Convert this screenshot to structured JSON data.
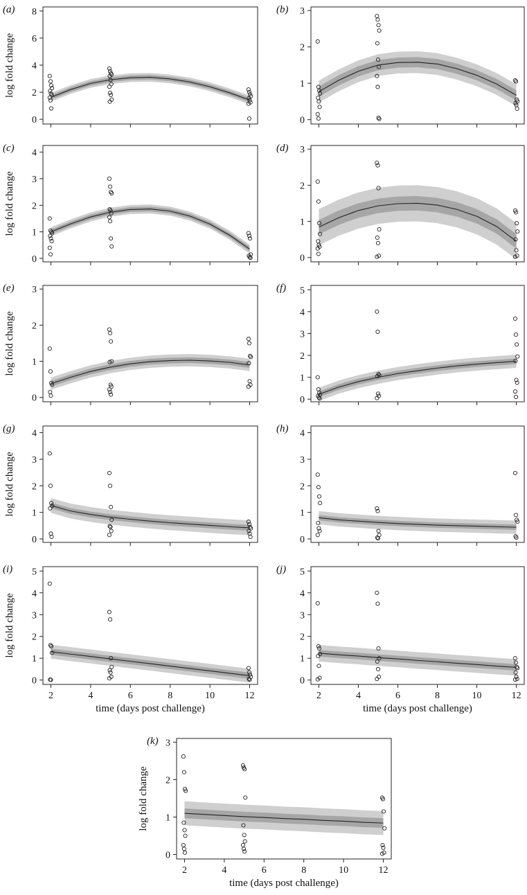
{
  "figure": {
    "background": "#ffffff",
    "band_outer_color": "#cfcfcf",
    "band_inner_color": "#a6a6a6",
    "line_color": "#222222"
  },
  "chart_data": [
    {
      "type": "scatter",
      "panel": "(a)",
      "xlabel": "",
      "ylabel": "log fold change",
      "xlim": [
        1.6,
        12.4
      ],
      "ylim": [
        -0.35,
        8.3
      ],
      "xticks": [
        2,
        4,
        6,
        8,
        10,
        12
      ],
      "yticks": [
        0,
        2,
        4,
        6,
        8
      ],
      "points": {
        "2": [
          3.2,
          2.8,
          2.5,
          2.3,
          2.1,
          1.9,
          1.8,
          1.6,
          1.4,
          0.8
        ],
        "5": [
          3.75,
          3.55,
          3.4,
          3.3,
          3.2,
          2.9,
          2.6,
          2.4,
          1.95,
          1.8,
          1.45,
          1.3
        ],
        "12": [
          2.2,
          2.0,
          1.85,
          1.7,
          1.55,
          1.4,
          1.25,
          1.15,
          0.05
        ]
      },
      "fit": {
        "x": [
          2,
          3,
          4,
          5,
          6,
          7,
          8,
          9,
          10,
          11,
          12
        ],
        "y": [
          1.62,
          2.2,
          2.65,
          2.92,
          3.07,
          3.1,
          2.98,
          2.75,
          2.4,
          1.95,
          1.42
        ],
        "band_outer": 0.32,
        "band_inner": 0.17
      }
    },
    {
      "type": "scatter",
      "panel": "(b)",
      "xlabel": "",
      "ylabel": "",
      "xlim": [
        1.6,
        12.4
      ],
      "ylim": [
        -0.12,
        3.1
      ],
      "xticks": [
        2,
        4,
        6,
        8,
        10,
        12
      ],
      "yticks": [
        0,
        1,
        2,
        3
      ],
      "points": {
        "2": [
          2.15,
          0.9,
          0.8,
          0.72,
          0.6,
          0.5,
          0.35,
          0.15,
          0.03
        ],
        "5": [
          2.85,
          2.75,
          2.6,
          2.45,
          2.1,
          1.65,
          1.45,
          1.2,
          0.9,
          0.05,
          0.02
        ],
        "12": [
          1.08,
          1.05,
          0.55,
          0.5,
          0.45,
          0.4,
          0.3
        ]
      },
      "fit": {
        "x": [
          2,
          3,
          4,
          5,
          6,
          7,
          8,
          9,
          10,
          11,
          12
        ],
        "y": [
          0.77,
          1.08,
          1.33,
          1.5,
          1.57,
          1.58,
          1.53,
          1.4,
          1.22,
          0.98,
          0.67
        ],
        "band_outer": 0.3,
        "band_inner": 0.14
      }
    },
    {
      "type": "scatter",
      "panel": "(c)",
      "xlabel": "",
      "ylabel": "log fold change",
      "xlim": [
        1.6,
        12.4
      ],
      "ylim": [
        -0.13,
        4.25
      ],
      "xticks": [
        2,
        4,
        6,
        8,
        10,
        12
      ],
      "yticks": [
        0,
        1,
        2,
        3,
        4
      ],
      "points": {
        "2": [
          1.5,
          1.05,
          1.0,
          0.95,
          0.85,
          0.75,
          0.65,
          0.4,
          0.15
        ],
        "5": [
          3.0,
          2.7,
          2.5,
          2.45,
          1.85,
          1.8,
          1.7,
          1.55,
          1.4,
          0.75,
          0.45
        ],
        "12": [
          0.95,
          0.85,
          0.75,
          0.15,
          0.1,
          0.05,
          0.02
        ]
      },
      "fit": {
        "x": [
          2,
          3,
          4,
          5,
          6,
          7,
          8,
          9,
          10,
          11,
          12
        ],
        "y": [
          1.0,
          1.3,
          1.56,
          1.74,
          1.84,
          1.86,
          1.78,
          1.59,
          1.29,
          0.87,
          0.35
        ],
        "band_outer": 0.17,
        "band_inner": 0.09
      }
    },
    {
      "type": "scatter",
      "panel": "(d)",
      "xlabel": "",
      "ylabel": "",
      "xlim": [
        1.6,
        12.4
      ],
      "ylim": [
        -0.12,
        3.1
      ],
      "xticks": [
        2,
        4,
        6,
        8,
        10,
        12
      ],
      "yticks": [
        0,
        1,
        2,
        3
      ],
      "points": {
        "2": [
          2.1,
          1.55,
          0.95,
          0.65,
          0.45,
          0.35,
          0.3,
          0.25,
          0.1
        ],
        "5": [
          2.62,
          2.55,
          1.92,
          0.78,
          0.55,
          0.4,
          0.05,
          0.02
        ],
        "12": [
          1.3,
          1.25,
          0.95,
          0.72,
          0.5,
          0.2,
          0.05,
          0.02
        ]
      },
      "fit": {
        "x": [
          2,
          3,
          4,
          5,
          6,
          7,
          8,
          9,
          10,
          11,
          12
        ],
        "y": [
          0.84,
          1.1,
          1.3,
          1.43,
          1.49,
          1.5,
          1.45,
          1.33,
          1.14,
          0.86,
          0.45
        ],
        "band_outer": 0.5,
        "band_inner": 0.2
      }
    },
    {
      "type": "scatter",
      "panel": "(e)",
      "xlabel": "",
      "ylabel": "log fold change",
      "xlim": [
        1.6,
        12.4
      ],
      "ylim": [
        -0.12,
        3.1
      ],
      "xticks": [
        2,
        4,
        6,
        8,
        10,
        12
      ],
      "yticks": [
        0,
        1,
        2,
        3
      ],
      "points": {
        "2": [
          1.35,
          0.72,
          0.4,
          0.35,
          0.15,
          0.05
        ],
        "5": [
          1.88,
          1.78,
          1.55,
          1.0,
          0.98,
          0.35,
          0.3,
          0.22,
          0.15,
          0.08
        ],
        "12": [
          1.62,
          1.5,
          1.15,
          1.12,
          0.95,
          0.45,
          0.35,
          0.3
        ]
      },
      "fit": {
        "x": [
          2,
          3,
          4,
          5,
          6,
          7,
          8,
          9,
          10,
          11,
          12
        ],
        "y": [
          0.38,
          0.56,
          0.72,
          0.84,
          0.93,
          0.99,
          1.02,
          1.03,
          1.01,
          0.97,
          0.9
        ],
        "band_outer": 0.17,
        "band_inner": 0.08
      }
    },
    {
      "type": "scatter",
      "panel": "(f)",
      "xlabel": "",
      "ylabel": "",
      "xlim": [
        1.6,
        12.4
      ],
      "ylim": [
        -0.12,
        5.2
      ],
      "xticks": [
        2,
        4,
        6,
        8,
        10,
        12
      ],
      "yticks": [
        0,
        1,
        2,
        3,
        4,
        5
      ],
      "points": {
        "2": [
          1.0,
          0.45,
          0.3,
          0.2,
          0.15,
          0.08,
          0.03
        ],
        "5": [
          4.0,
          3.08,
          1.15,
          1.1,
          1.05,
          0.25,
          0.15,
          0.05
        ],
        "12": [
          3.68,
          2.95,
          2.5,
          1.95,
          1.75,
          0.88,
          0.75,
          0.35,
          0.1
        ]
      },
      "fit": {
        "x": [
          2,
          3,
          4,
          5,
          6,
          7,
          8,
          9,
          10,
          11,
          12
        ],
        "y": [
          0.22,
          0.55,
          0.8,
          1.0,
          1.17,
          1.3,
          1.42,
          1.52,
          1.6,
          1.67,
          1.73
        ],
        "band_outer": 0.3,
        "band_inner": 0.13
      }
    },
    {
      "type": "scatter",
      "panel": "(g)",
      "xlabel": "",
      "ylabel": "log fold change",
      "xlim": [
        1.6,
        12.4
      ],
      "ylim": [
        -0.13,
        4.25
      ],
      "xticks": [
        2,
        4,
        6,
        8,
        10,
        12
      ],
      "yticks": [
        0,
        1,
        2,
        3,
        4
      ],
      "points": {
        "2": [
          3.22,
          2.0,
          1.35,
          1.25,
          1.15,
          0.2,
          0.08
        ],
        "5": [
          2.48,
          2.0,
          1.2,
          0.72,
          0.48,
          0.45,
          0.3,
          0.15
        ],
        "12": [
          0.65,
          0.55,
          0.45,
          0.4,
          0.3,
          0.2,
          0.08
        ]
      },
      "fit": {
        "x": [
          2,
          3,
          4,
          5,
          6,
          7,
          8,
          9,
          10,
          11,
          12
        ],
        "y": [
          1.26,
          1.05,
          0.92,
          0.82,
          0.74,
          0.67,
          0.61,
          0.56,
          0.51,
          0.46,
          0.42
        ],
        "band_outer": 0.28,
        "band_inner": 0.11
      }
    },
    {
      "type": "scatter",
      "panel": "(h)",
      "xlabel": "",
      "ylabel": "",
      "xlim": [
        1.6,
        12.4
      ],
      "ylim": [
        -0.13,
        4.25
      ],
      "xticks": [
        2,
        4,
        6,
        8,
        10,
        12
      ],
      "yticks": [
        0,
        1,
        2,
        3,
        4
      ],
      "points": {
        "2": [
          2.42,
          1.95,
          1.6,
          1.35,
          0.6,
          0.4,
          0.3,
          0.15
        ],
        "5": [
          1.15,
          1.05,
          0.3,
          0.15,
          0.05,
          0.02
        ],
        "12": [
          2.48,
          0.9,
          0.72,
          0.65,
          0.1,
          0.05
        ]
      },
      "fit": {
        "x": [
          2,
          3,
          4,
          5,
          6,
          7,
          8,
          9,
          10,
          11,
          12
        ],
        "y": [
          0.8,
          0.72,
          0.67,
          0.62,
          0.58,
          0.55,
          0.52,
          0.5,
          0.48,
          0.46,
          0.44
        ],
        "band_outer": 0.25,
        "band_inner": 0.1
      }
    },
    {
      "type": "scatter",
      "panel": "(i)",
      "xlabel": "time (days post challenge)",
      "ylabel": "log fold change",
      "xlim": [
        1.6,
        12.4
      ],
      "ylim": [
        -0.2,
        5.2
      ],
      "xticks": [
        2,
        4,
        6,
        8,
        10,
        12
      ],
      "yticks": [
        0,
        1,
        2,
        3,
        4,
        5
      ],
      "points": {
        "2": [
          4.42,
          1.6,
          1.55,
          1.25,
          0.02,
          0.01
        ],
        "5": [
          3.12,
          2.78,
          1.0,
          0.6,
          0.45,
          0.35,
          0.15,
          0.08
        ],
        "12": [
          0.55,
          0.35,
          0.25,
          0.15,
          0.05,
          0.02
        ]
      },
      "fit": {
        "x": [
          2,
          3,
          4,
          5,
          6,
          7,
          8,
          9,
          10,
          11,
          12
        ],
        "y": [
          1.3,
          1.19,
          1.08,
          0.97,
          0.86,
          0.75,
          0.64,
          0.53,
          0.42,
          0.31,
          0.2
        ],
        "band_outer": 0.32,
        "band_inner": 0.14
      }
    },
    {
      "type": "scatter",
      "panel": "(j)",
      "xlabel": "time (days post challenge)",
      "ylabel": "",
      "xlim": [
        1.6,
        12.4
      ],
      "ylim": [
        -0.2,
        5.2
      ],
      "xticks": [
        2,
        4,
        6,
        8,
        10,
        12
      ],
      "yticks": [
        0,
        1,
        2,
        3,
        4,
        5
      ],
      "points": {
        "2": [
          3.52,
          1.55,
          1.45,
          1.2,
          1.1,
          0.65,
          0.1,
          0.03
        ],
        "5": [
          4.0,
          3.5,
          1.45,
          1.0,
          0.85,
          0.5,
          0.15,
          0.05
        ],
        "12": [
          1.0,
          0.8,
          0.6,
          0.55,
          0.35,
          0.15,
          0.05,
          0.02
        ]
      },
      "fit": {
        "x": [
          2,
          3,
          4,
          5,
          6,
          7,
          8,
          9,
          10,
          11,
          12
        ],
        "y": [
          1.23,
          1.16,
          1.1,
          1.03,
          0.97,
          0.9,
          0.84,
          0.77,
          0.71,
          0.64,
          0.58
        ],
        "band_outer": 0.38,
        "band_inner": 0.15
      }
    },
    {
      "type": "scatter",
      "panel": "(k)",
      "xlabel": "time (days post challenge)",
      "ylabel": "log fold change",
      "xlim": [
        1.6,
        12.4
      ],
      "ylim": [
        -0.12,
        3.1
      ],
      "xticks": [
        2,
        4,
        6,
        8,
        10,
        12
      ],
      "yticks": [
        0,
        1,
        2,
        3
      ],
      "points": {
        "2": [
          2.62,
          2.2,
          1.75,
          1.7,
          0.85,
          0.65,
          0.5,
          0.25,
          0.15,
          0.05
        ],
        "5": [
          2.38,
          2.32,
          2.28,
          1.52,
          0.78,
          0.52,
          0.35,
          0.25,
          0.15,
          0.08
        ],
        "12": [
          1.52,
          1.48,
          1.15,
          0.7,
          0.25,
          0.18,
          0.05,
          0.02
        ]
      },
      "fit": {
        "x": [
          2,
          3,
          4,
          5,
          6,
          7,
          8,
          9,
          10,
          11,
          12
        ],
        "y": [
          1.1,
          1.07,
          1.04,
          1.01,
          0.99,
          0.96,
          0.94,
          0.91,
          0.89,
          0.86,
          0.84
        ],
        "band_outer": 0.32,
        "band_inner": 0.13
      }
    }
  ]
}
